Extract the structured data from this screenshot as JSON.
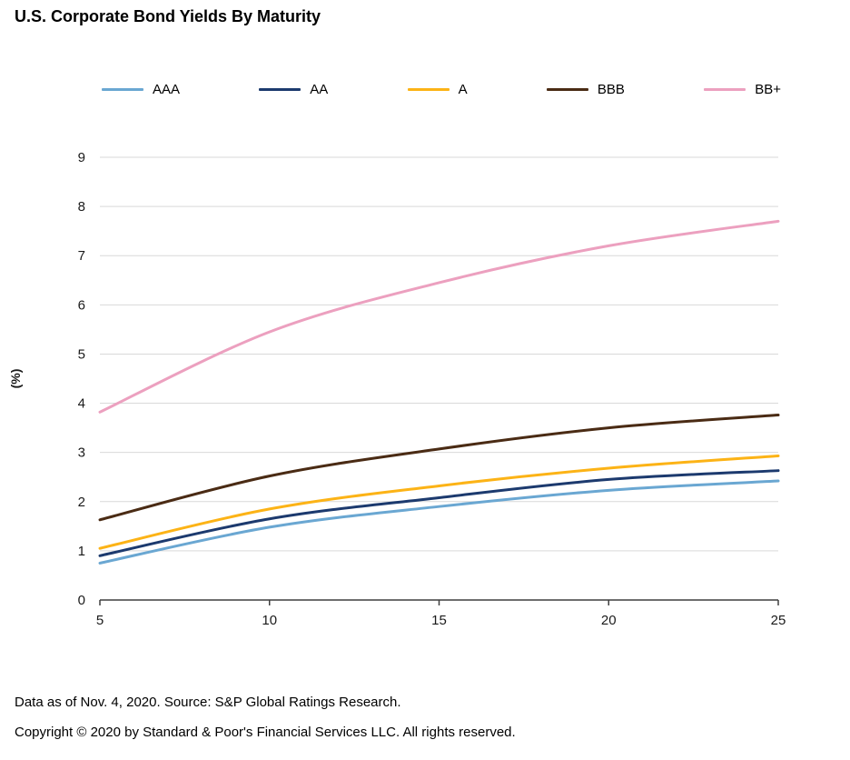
{
  "title": "U.S. Corporate Bond Yields By Maturity",
  "footer": {
    "line1": "Data as of Nov. 4, 2020. Source: S&P Global Ratings Research.",
    "line2": "Copyright © 2020 by Standard & Poor's Financial Services LLC. All rights reserved."
  },
  "chart_data": {
    "type": "line",
    "title": "U.S. Corporate Bond Yields By Maturity",
    "xlabel": "",
    "ylabel": "(%)",
    "x": [
      5,
      10,
      15,
      20,
      25
    ],
    "xticks": [
      5,
      10,
      15,
      20,
      25
    ],
    "yticks": [
      0,
      1,
      2,
      3,
      4,
      5,
      6,
      7,
      8,
      9
    ],
    "ylim": [
      0,
      9
    ],
    "grid": true,
    "legend_position": "top",
    "series": [
      {
        "name": "AAA",
        "color": "#6aa7d2",
        "values": [
          0.75,
          1.48,
          1.9,
          2.23,
          2.42
        ]
      },
      {
        "name": "AA",
        "color": "#1c3a6e",
        "values": [
          0.9,
          1.65,
          2.08,
          2.45,
          2.63
        ]
      },
      {
        "name": "A",
        "color": "#fcb316",
        "values": [
          1.05,
          1.85,
          2.32,
          2.68,
          2.93
        ]
      },
      {
        "name": "BBB",
        "color": "#4a2b14",
        "values": [
          1.63,
          2.52,
          3.07,
          3.5,
          3.76
        ]
      },
      {
        "name": "BB+",
        "color": "#eca0bf",
        "values": [
          3.82,
          5.45,
          6.45,
          7.2,
          7.7
        ]
      }
    ],
    "axis_color": "#3f3f3f",
    "grid_color": "#d9d9d9"
  }
}
